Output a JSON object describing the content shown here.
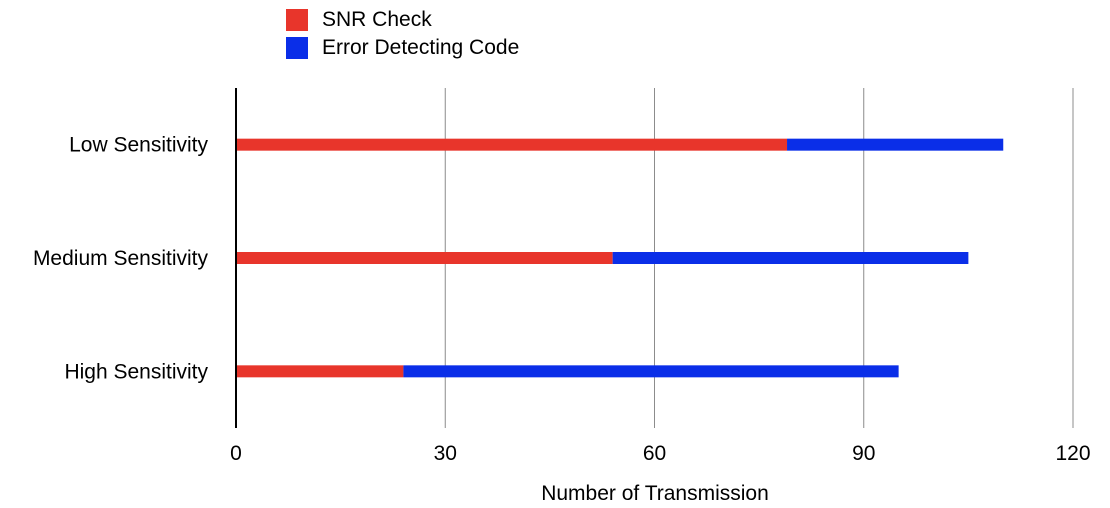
{
  "chart_data": {
    "type": "bar",
    "orientation": "horizontal",
    "stacked": true,
    "title": "",
    "xlabel": "Number of Transmission",
    "ylabel": "",
    "xlim": [
      0,
      120
    ],
    "xticks": [
      0,
      30,
      60,
      90,
      120
    ],
    "grid": true,
    "legend_position": "top-left",
    "categories": [
      "Low Sensitivity",
      "Medium Sensitivity",
      "High Sensitivity"
    ],
    "series": [
      {
        "name": "SNR Check",
        "color": "#e8352b",
        "values": [
          79,
          54,
          24
        ]
      },
      {
        "name": "Error Detecting Code",
        "color": "#0a2ee8",
        "values": [
          31,
          51,
          71
        ]
      }
    ]
  }
}
